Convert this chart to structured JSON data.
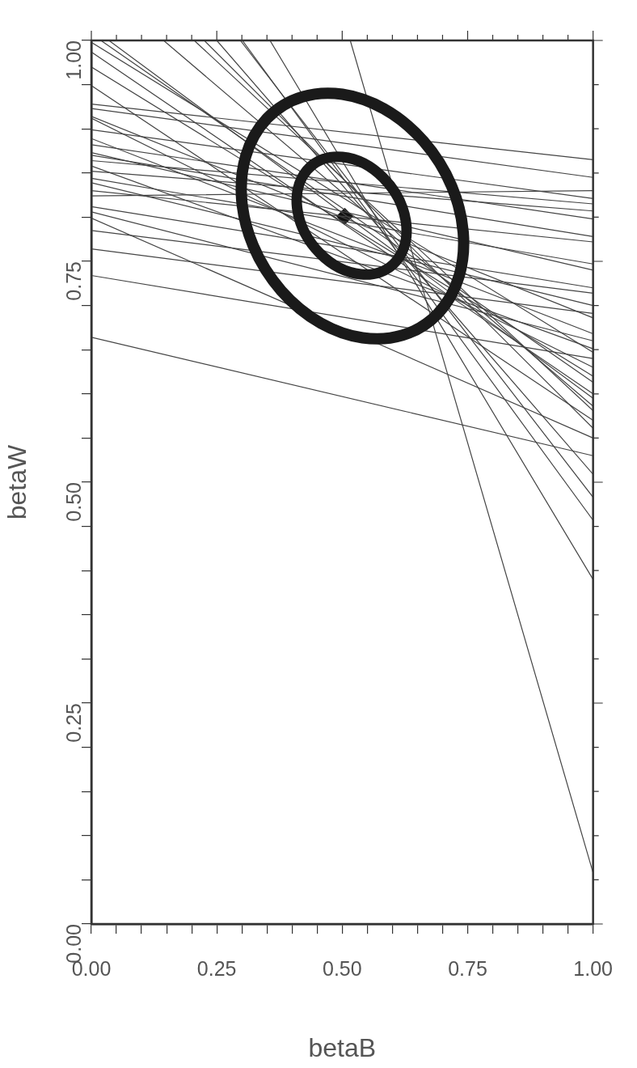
{
  "chart_data": {
    "type": "line",
    "xlabel": "betaB",
    "ylabel": "betaW",
    "xlim": [
      0,
      1
    ],
    "ylim": [
      0,
      1
    ],
    "xticks": [
      {
        "value": 0,
        "label": "0.00"
      },
      {
        "value": 0.05,
        "label": null
      },
      {
        "value": 0.1,
        "label": null
      },
      {
        "value": 0.15,
        "label": null
      },
      {
        "value": 0.2,
        "label": null
      },
      0.25,
      {
        "value": 0.3,
        "label": null
      },
      {
        "value": 0.35,
        "label": null
      },
      {
        "value": 0.4,
        "label": null
      },
      {
        "value": 0.45,
        "label": null
      },
      {
        "value": 0.5,
        "label": "0.50"
      },
      {
        "value": 0.55,
        "label": null
      },
      {
        "value": 0.6,
        "label": null
      },
      {
        "value": 0.65,
        "label": null
      },
      {
        "value": 0.7,
        "label": null
      },
      0.75,
      {
        "value": 0.8,
        "label": null
      },
      {
        "value": 0.85,
        "label": null
      },
      {
        "value": 0.9,
        "label": null
      },
      {
        "value": 0.95,
        "label": null
      },
      {
        "value": 1,
        "label": "1.00"
      }
    ],
    "yticks": [
      {
        "value": 0,
        "label": "0.00"
      },
      {
        "value": 0.05,
        "label": null
      },
      {
        "value": 0.1,
        "label": null
      },
      {
        "value": 0.15,
        "label": null
      },
      {
        "value": 0.2,
        "label": null
      },
      0.25,
      {
        "value": 0.3,
        "label": null
      },
      {
        "value": 0.35,
        "label": null
      },
      {
        "value": 0.4,
        "label": null
      },
      {
        "value": 0.45,
        "label": null
      },
      {
        "value": 0.5,
        "label": "0.50"
      },
      {
        "value": 0.55,
        "label": null
      },
      {
        "value": 0.6,
        "label": null
      },
      {
        "value": 0.65,
        "label": null
      },
      {
        "value": 0.7,
        "label": null
      },
      0.75,
      {
        "value": 0.8,
        "label": null
      },
      {
        "value": 0.85,
        "label": null
      },
      {
        "value": 0.9,
        "label": null
      },
      {
        "value": 0.95,
        "label": null
      },
      {
        "value": 1,
        "label": "1.00"
      }
    ],
    "marker": "none",
    "line_style": "solid",
    "series": [
      {
        "x": [
          0.516,
          1
        ],
        "values": [
          1,
          0.058
        ],
        "color": "#444444"
      },
      {
        "x": [
          0.356,
          1
        ],
        "values": [
          1,
          0.39
        ],
        "color": "#444444"
      },
      {
        "x": [
          0.301,
          1
        ],
        "values": [
          1,
          0.457
        ],
        "color": "#444444"
      },
      {
        "x": [
          0.297,
          1
        ],
        "values": [
          1,
          0.483
        ],
        "color": "#444444"
      },
      {
        "x": [
          0.25,
          1
        ],
        "values": [
          1,
          0.509
        ],
        "color": "#444444"
      },
      {
        "x": [
          0,
          1
        ],
        "values": [
          0.664,
          0.53
        ],
        "color": "#444444"
      },
      {
        "x": [
          0.225,
          1
        ],
        "values": [
          1,
          0.561
        ],
        "color": "#444444"
      },
      {
        "x": [
          0.205,
          1
        ],
        "values": [
          1,
          0.581
        ],
        "color": "#444444"
      },
      {
        "x": [
          0.144,
          1
        ],
        "values": [
          1,
          0.586
        ],
        "color": "#444444"
      },
      {
        "x": [
          0.035,
          1
        ],
        "values": [
          1,
          0.595
        ],
        "color": "#444444"
      },
      {
        "x": [
          0.019,
          1
        ],
        "values": [
          1,
          0.613
        ],
        "color": "#444444"
      },
      {
        "x": [
          0,
          1
        ],
        "values": [
          0.998,
          0.647
        ],
        "color": "#444444"
      },
      {
        "x": [
          0,
          1
        ],
        "values": [
          0.987,
          0.6
        ],
        "color": "#444444"
      },
      {
        "x": [
          0,
          1
        ],
        "values": [
          0.97,
          0.62
        ],
        "color": "#444444"
      },
      {
        "x": [
          0,
          1
        ],
        "values": [
          0.949,
          0.57
        ],
        "color": "#444444"
      },
      {
        "x": [
          0,
          1
        ],
        "values": [
          0.928,
          0.865
        ],
        "color": "#444444"
      },
      {
        "x": [
          0,
          1
        ],
        "values": [
          0.923,
          0.845
        ],
        "color": "#444444"
      },
      {
        "x": [
          0,
          1
        ],
        "values": [
          0.914,
          0.686
        ],
        "color": "#444444"
      },
      {
        "x": [
          0,
          1
        ],
        "values": [
          0.912,
          0.63
        ],
        "color": "#444444"
      },
      {
        "x": [
          0,
          1
        ],
        "values": [
          0.899,
          0.821
        ],
        "color": "#444444"
      },
      {
        "x": [
          0,
          1
        ],
        "values": [
          0.889,
          0.668
        ],
        "color": "#444444"
      },
      {
        "x": [
          0,
          1
        ],
        "values": [
          0.882,
          0.798
        ],
        "color": "#444444"
      },
      {
        "x": [
          0,
          1
        ],
        "values": [
          0.873,
          0.74
        ],
        "color": "#444444"
      },
      {
        "x": [
          0,
          1
        ],
        "values": [
          0.87,
          0.778
        ],
        "color": "#444444"
      },
      {
        "x": [
          0,
          1
        ],
        "values": [
          0.864,
          0.815
        ],
        "color": "#444444"
      },
      {
        "x": [
          0,
          1
        ],
        "values": [
          0.858,
          0.651
        ],
        "color": "#444444"
      },
      {
        "x": [
          0,
          1
        ],
        "values": [
          0.852,
          0.807
        ],
        "color": "#444444"
      },
      {
        "x": [
          0,
          1
        ],
        "values": [
          0.844,
          0.747
        ],
        "color": "#444444"
      },
      {
        "x": [
          0,
          1
        ],
        "values": [
          0.839,
          0.7
        ],
        "color": "#444444"
      },
      {
        "x": [
          0,
          1
        ],
        "values": [
          0.83,
          0.772
        ],
        "color": "#444444"
      },
      {
        "x": [
          0,
          1
        ],
        "values": [
          0.824,
          0.83
        ],
        "color": "#444444"
      },
      {
        "x": [
          0,
          1
        ],
        "values": [
          0.812,
          0.72
        ],
        "color": "#444444"
      },
      {
        "x": [
          0,
          1
        ],
        "values": [
          0.806,
          0.66
        ],
        "color": "#444444"
      },
      {
        "x": [
          0,
          1
        ],
        "values": [
          0.799,
          0.55
        ],
        "color": "#444444"
      },
      {
        "x": [
          0,
          1
        ],
        "values": [
          0.785,
          0.714
        ],
        "color": "#444444"
      },
      {
        "x": [
          0,
          1
        ],
        "values": [
          0.764,
          0.691
        ],
        "color": "#444444"
      },
      {
        "x": [
          0,
          1
        ],
        "values": [
          0.734,
          0.64
        ],
        "color": "#444444"
      },
      {
        "type": "scatter",
        "marker": "diamond",
        "x": [
          0.505
        ],
        "values": [
          0.801
        ],
        "color": "#111111"
      }
    ]
  }
}
